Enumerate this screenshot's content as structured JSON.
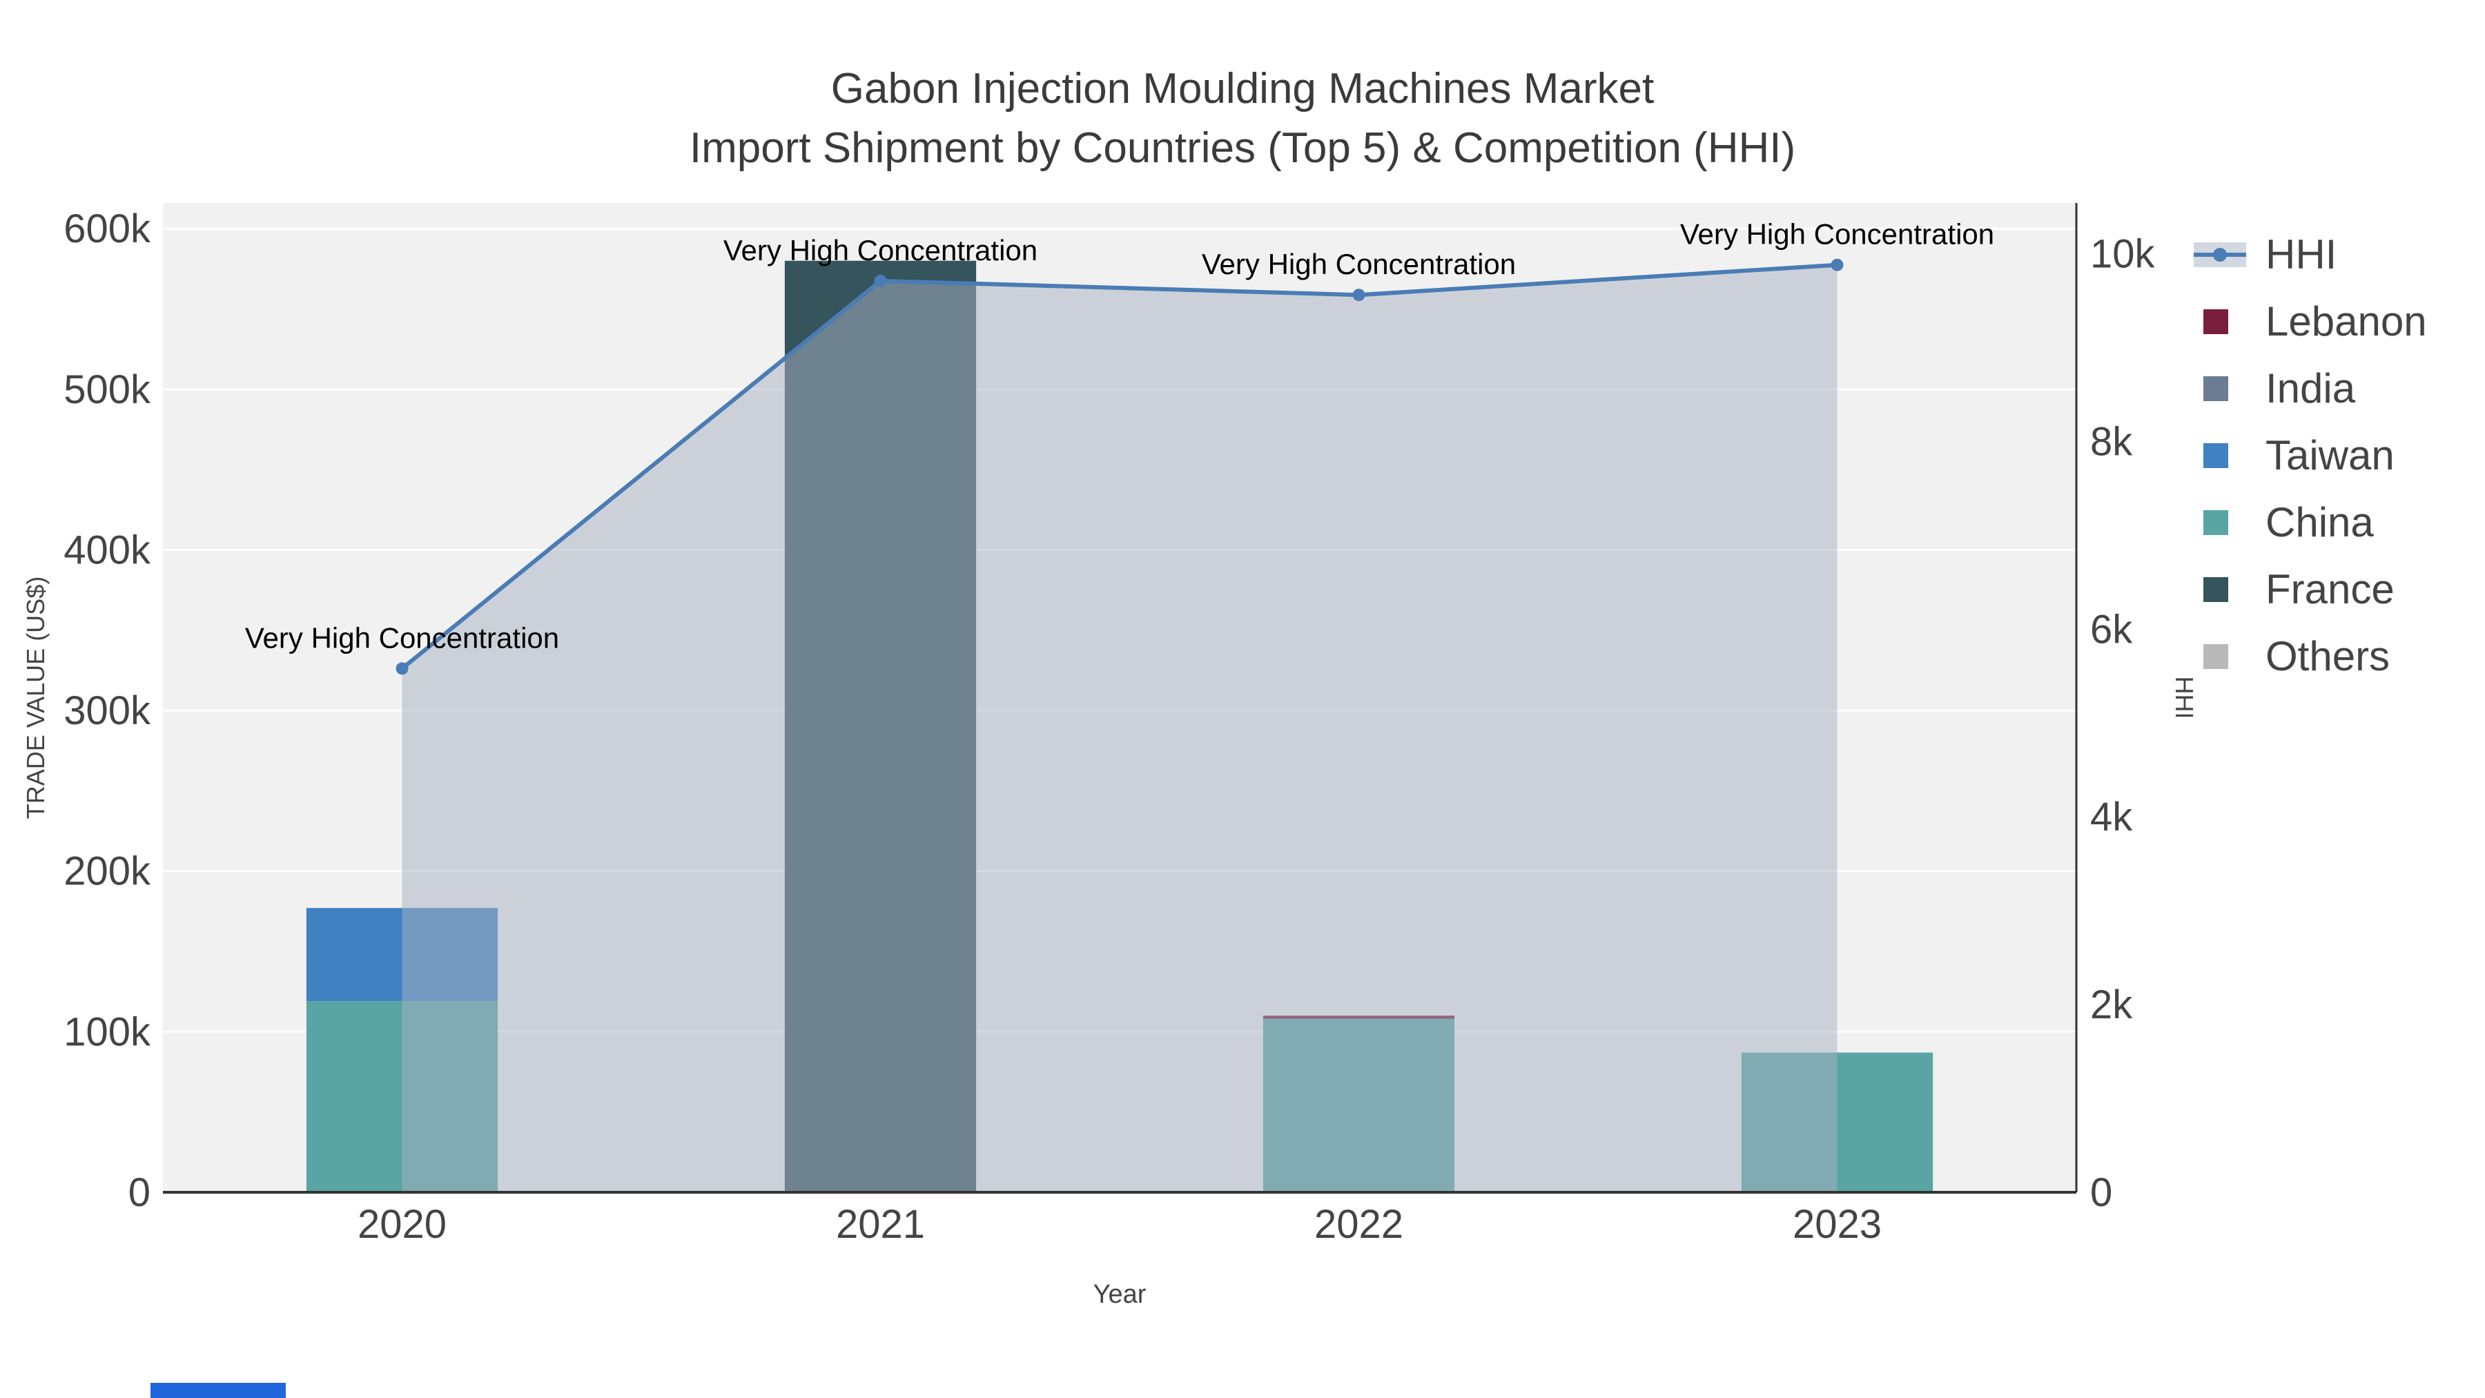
{
  "chart_data": {
    "type": "bar+line",
    "title": "Gabon Injection Moulding Machines Market",
    "subtitle": "Import Shipment by Countries (Top 5) & Competition (HHI)",
    "categories": [
      "2020",
      "2021",
      "2022",
      "2023"
    ],
    "bar_series": [
      {
        "name": "France",
        "values": [
          0,
          580000,
          0,
          0
        ]
      },
      {
        "name": "China",
        "values": [
          119000,
          0,
          108000,
          87000
        ]
      },
      {
        "name": "Taiwan",
        "values": [
          58000,
          0,
          0,
          0
        ]
      },
      {
        "name": "Lebanon",
        "values": [
          0,
          0,
          2000,
          0
        ]
      },
      {
        "name": "India",
        "values": [
          0,
          0,
          0,
          0
        ]
      },
      {
        "name": "Others",
        "values": [
          0,
          0,
          0,
          0
        ]
      }
    ],
    "line_series": {
      "name": "HHI",
      "axis": "right",
      "values": [
        5580,
        9710,
        9560,
        9880
      ]
    },
    "point_annotations": [
      {
        "x": "2020",
        "text": "Very High Concentration"
      },
      {
        "x": "2021",
        "text": "Very High Concentration"
      },
      {
        "x": "2022",
        "text": "Very High Concentration"
      },
      {
        "x": "2023",
        "text": "Very High Concentration"
      }
    ],
    "x_axis": {
      "title": "Year"
    },
    "left_axis": {
      "title": "TRADE VALUE (US$)",
      "tick_labels": [
        "0",
        "100k",
        "200k",
        "300k",
        "400k",
        "500k",
        "600k"
      ],
      "tick_values": [
        0,
        100000,
        200000,
        300000,
        400000,
        500000,
        600000
      ],
      "range": [
        0,
        616000
      ]
    },
    "right_axis": {
      "title": "HHI",
      "tick_labels": [
        "0",
        "2k",
        "4k",
        "6k",
        "8k",
        "10k"
      ],
      "tick_values": [
        0,
        2000,
        4000,
        6000,
        8000,
        10000
      ],
      "range": [
        0,
        10540
      ]
    },
    "legend": {
      "position": "right",
      "entries": [
        {
          "label": "HHI",
          "marker": "line",
          "color": "#4a7cb5"
        },
        {
          "label": "Lebanon",
          "marker": "square",
          "color": "#7a1e3e"
        },
        {
          "label": "India",
          "marker": "square",
          "color": "#6b7c93"
        },
        {
          "label": "Taiwan",
          "marker": "square",
          "color": "#3f81c1"
        },
        {
          "label": "China",
          "marker": "square",
          "color": "#58a5a3"
        },
        {
          "label": "France",
          "marker": "square",
          "color": "#35545c"
        },
        {
          "label": "Others",
          "marker": "square",
          "color": "#b9b9b9"
        }
      ]
    },
    "colors": {
      "HHI": "#4a7cb5",
      "hhi_area_fill": "rgba(168,178,194,0.5)",
      "Lebanon": "#7a1e3e",
      "India": "#6b7c93",
      "Taiwan": "#3f81c1",
      "China": "#58a5a3",
      "France": "#35545c",
      "Others": "#b9b9b9",
      "plot_background": "#f1f1f1",
      "gridline": "#ffffff",
      "axis_line": "#333333",
      "text": "#444444",
      "annotation_text": "#000000"
    },
    "grid": true
  },
  "misc": {
    "bottom_strip_color": "#2266dd"
  }
}
